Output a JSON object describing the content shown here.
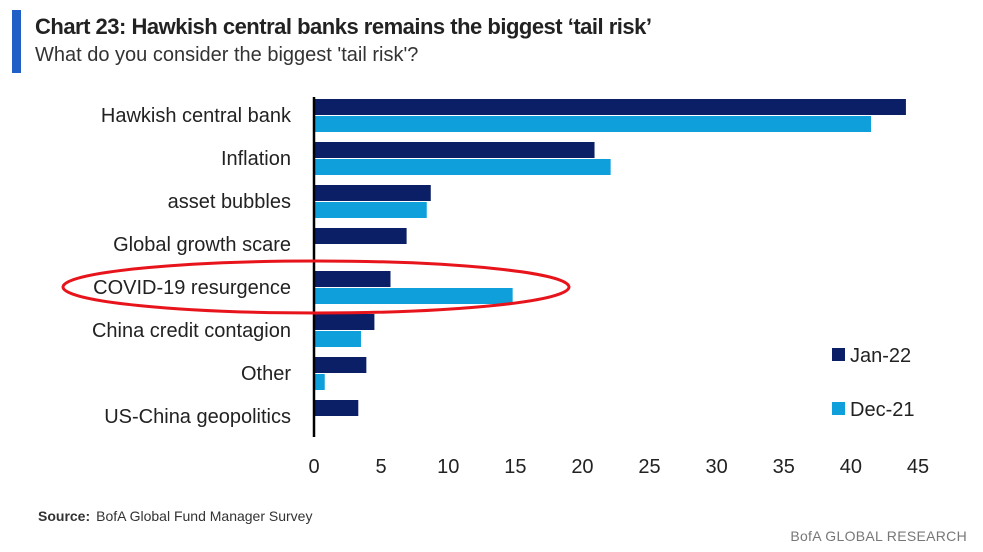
{
  "title": "Chart 23: Hawkish central banks remains the biggest ‘tail risk’",
  "subtitle": "What do you consider the biggest 'tail risk'?",
  "source_label": "Source:",
  "source_text": "BofA Global Fund Manager Survey",
  "brand": "BofA GLOBAL RESEARCH",
  "colors": {
    "jan": "#0b1f66",
    "dec": "#0fa0dc",
    "highlight": "#e8141b",
    "accent": "#1f5fc6"
  },
  "chart_data": {
    "type": "bar",
    "orientation": "horizontal",
    "title": "Chart 23: Hawkish central banks remains the biggest ‘tail risk’",
    "categories": [
      "Hawkish central bank",
      "Inflation",
      "asset bubbles",
      "Global growth scare",
      "COVID-19 resurgence",
      "China credit contagion",
      "Other",
      "US-China geopolitics"
    ],
    "series": [
      {
        "name": "Jan-22",
        "values": [
          44.1,
          20.9,
          8.7,
          6.9,
          5.7,
          4.5,
          3.9,
          3.3
        ]
      },
      {
        "name": "Dec-21",
        "values": [
          41.5,
          22.1,
          8.4,
          null,
          14.8,
          3.5,
          0.8,
          null
        ]
      }
    ],
    "xlim": [
      0,
      45
    ],
    "xticks": [
      0,
      5,
      10,
      15,
      20,
      25,
      30,
      35,
      40,
      45
    ],
    "legend": "bottom-right",
    "grid": false,
    "annotation": "red ellipse highlighting COVID-19 resurgence"
  }
}
